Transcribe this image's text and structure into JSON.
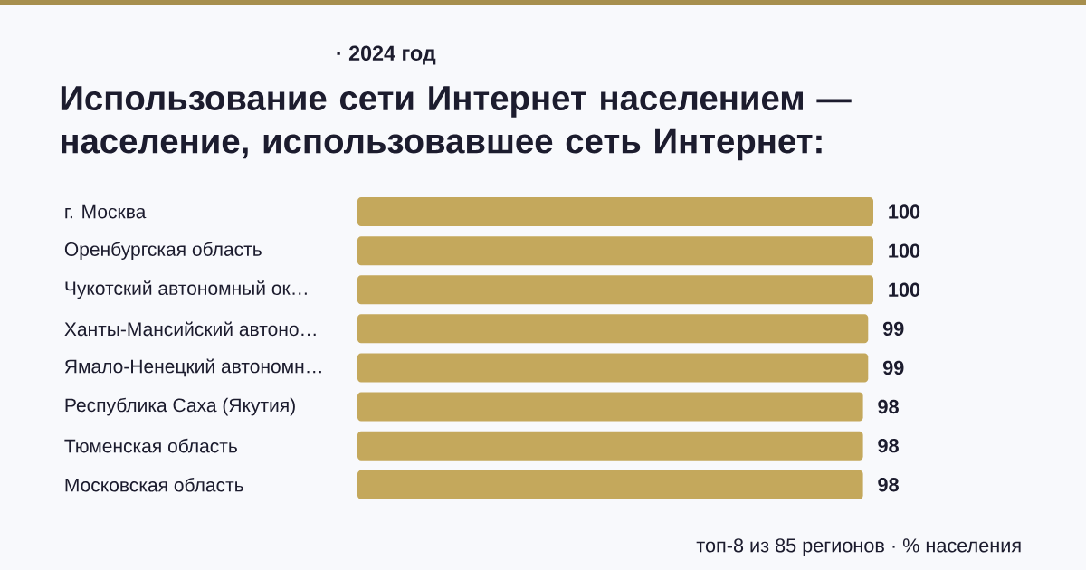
{
  "chart_data": {
    "type": "bar",
    "orientation": "horizontal",
    "subtitle": "· 2024 год",
    "title": "Использование сети Интернет населением — население, использовавшее сеть Интернет:",
    "categories": [
      "г. Москва",
      "Оренбургская область",
      "Чукотский автономный ок…",
      "Ханты-Мансийский автоно…",
      "Ямало-Ненецкий автономн…",
      "Республика Саха (Якутия)",
      "Тюменская область",
      "Московская область"
    ],
    "values": [
      100,
      100,
      100,
      99,
      99,
      98,
      98,
      98
    ],
    "color": "#c4a85c",
    "data_labels": true,
    "annotations": [
      "топ-8 из 85 регионов · % населения"
    ]
  }
}
